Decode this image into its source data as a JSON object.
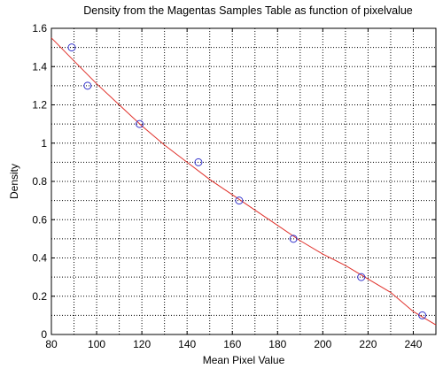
{
  "chart_data": {
    "type": "scatter",
    "title": "Density from the Magentas Samples Table as function of pixelvalue",
    "xlabel": "Mean Pixel Value",
    "ylabel": "Density",
    "xlim": [
      80,
      250
    ],
    "ylim": [
      0,
      1.6
    ],
    "xticks": [
      80,
      100,
      120,
      140,
      160,
      180,
      200,
      220,
      240
    ],
    "yticks": [
      0,
      0.2,
      0.4,
      0.6,
      0.8,
      1,
      1.2,
      1.4,
      1.6
    ],
    "xtick_labels": [
      "80",
      "100",
      "120",
      "140",
      "160",
      "180",
      "200",
      "220",
      "240"
    ],
    "ytick_labels": [
      "0",
      "0.2",
      "0.4",
      "0.6",
      "0.8",
      "1",
      "1.2",
      "1.4",
      "1.6"
    ],
    "grid": "on (dotted major and minor)",
    "series": [
      {
        "kind": "markers",
        "marker": "circle",
        "color": "#3333cc",
        "points": [
          {
            "x": 89,
            "y": 1.5
          },
          {
            "x": 96,
            "y": 1.3
          },
          {
            "x": 119,
            "y": 1.1
          },
          {
            "x": 145,
            "y": 0.9
          },
          {
            "x": 163,
            "y": 0.7
          },
          {
            "x": 187,
            "y": 0.5
          },
          {
            "x": 217,
            "y": 0.3
          },
          {
            "x": 244,
            "y": 0.1
          }
        ]
      },
      {
        "kind": "line",
        "color": "#e0302a",
        "points": [
          {
            "x": 80,
            "y": 1.55
          },
          {
            "x": 90,
            "y": 1.43
          },
          {
            "x": 100,
            "y": 1.31
          },
          {
            "x": 110,
            "y": 1.2
          },
          {
            "x": 120,
            "y": 1.09
          },
          {
            "x": 130,
            "y": 0.99
          },
          {
            "x": 140,
            "y": 0.9
          },
          {
            "x": 150,
            "y": 0.81
          },
          {
            "x": 160,
            "y": 0.73
          },
          {
            "x": 170,
            "y": 0.65
          },
          {
            "x": 180,
            "y": 0.57
          },
          {
            "x": 190,
            "y": 0.49
          },
          {
            "x": 200,
            "y": 0.42
          },
          {
            "x": 210,
            "y": 0.36
          },
          {
            "x": 220,
            "y": 0.29
          },
          {
            "x": 230,
            "y": 0.22
          },
          {
            "x": 240,
            "y": 0.12
          },
          {
            "x": 250,
            "y": 0.05
          }
        ]
      }
    ]
  }
}
